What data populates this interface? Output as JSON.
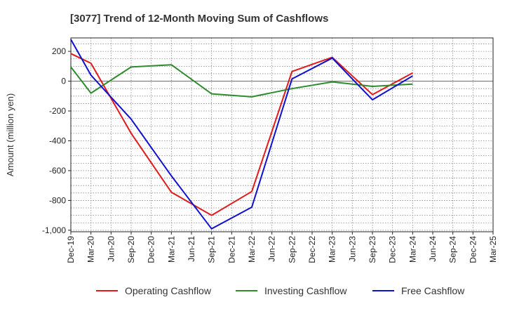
{
  "chart_data": {
    "type": "line",
    "title": "[3077]  Trend of 12-Month Moving Sum of Cashflows",
    "xlabel": "",
    "ylabel": "Amount (million yen)",
    "ylim": [
      -1010,
      290
    ],
    "yticks": [
      200,
      0,
      -200,
      -400,
      -600,
      -800,
      -1000
    ],
    "ytick_labels": [
      "200",
      "0",
      "-200",
      "-400",
      "-600",
      "-800",
      "-1,000"
    ],
    "categories": [
      "Dec-19",
      "Mar-20",
      "Jun-20",
      "Sep-20",
      "Dec-20",
      "Mar-21",
      "Jun-21",
      "Sep-21",
      "Dec-21",
      "Mar-22",
      "Jun-22",
      "Sep-22",
      "Dec-22",
      "Mar-23",
      "Jun-23",
      "Sep-23",
      "Dec-23",
      "Mar-24",
      "Jun-24",
      "Sep-24",
      "Dec-24",
      "Mar-25"
    ],
    "grid": true,
    "legend_position": "bottom",
    "series": [
      {
        "name": "Operating Cashflow",
        "color": "#e31a1c",
        "values": [
          185,
          120,
          null,
          -350,
          null,
          -745,
          null,
          -900,
          null,
          -740,
          null,
          65,
          null,
          160,
          null,
          -90,
          null,
          55,
          null,
          null,
          null,
          null
        ]
      },
      {
        "name": "Investing Cashflow",
        "color": "#2e8b2e",
        "values": [
          95,
          -80,
          null,
          95,
          null,
          110,
          null,
          -85,
          null,
          -105,
          null,
          -50,
          null,
          -5,
          null,
          -35,
          null,
          -20,
          null,
          null,
          null,
          null
        ]
      },
      {
        "name": "Free Cashflow",
        "color": "#1010d0",
        "values": [
          280,
          40,
          null,
          -255,
          null,
          -635,
          null,
          -990,
          null,
          -845,
          null,
          15,
          null,
          155,
          null,
          -125,
          null,
          35,
          null,
          null,
          null,
          null
        ]
      }
    ]
  }
}
